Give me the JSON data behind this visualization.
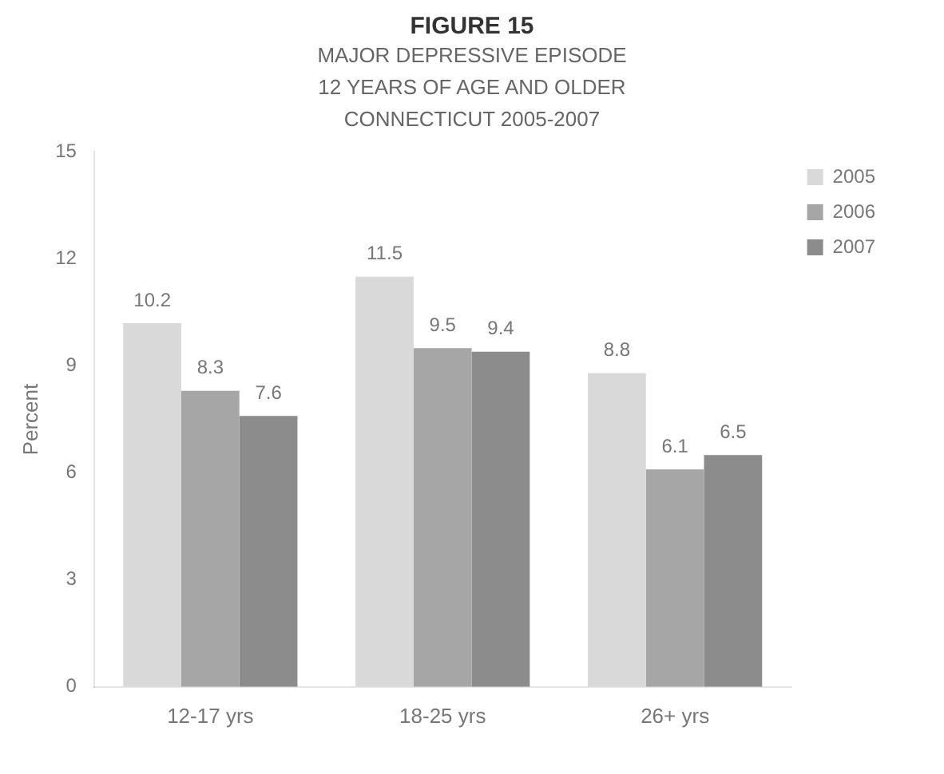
{
  "chart_data": {
    "type": "bar",
    "title": "FIGURE 15",
    "subtitle": "MAJOR DEPRESSIVE EPISODE\n12 YEARS OF AGE AND OLDER\nCONNECTICUT 2005-2007",
    "ylabel": "Percent",
    "categories": [
      "12-17 yrs",
      "18-25 yrs",
      "26+ yrs"
    ],
    "series": [
      {
        "name": "2005",
        "color": "#d9d9d9",
        "values": [
          10.2,
          11.5,
          8.8
        ]
      },
      {
        "name": "2006",
        "color": "#a6a6a6",
        "values": [
          8.3,
          9.5,
          6.1
        ]
      },
      {
        "name": "2007",
        "color": "#8c8c8c",
        "values": [
          7.6,
          9.4,
          6.5
        ]
      }
    ],
    "ylim": [
      0,
      15
    ],
    "yticks": [
      0,
      3,
      6,
      9,
      12,
      15
    ],
    "data_labels": true,
    "legend": "top right"
  }
}
